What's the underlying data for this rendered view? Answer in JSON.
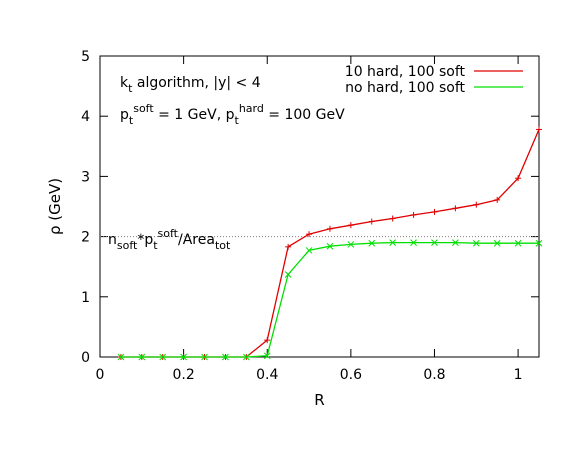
{
  "chart_data": {
    "type": "line",
    "title": "",
    "xlabel": "R",
    "ylabel": "ρ (GeV)",
    "xlim": [
      0,
      1.05
    ],
    "ylim": [
      0,
      5
    ],
    "x_ticks": [
      "0",
      "0.2",
      "0.4",
      "0.6",
      "0.8",
      "1"
    ],
    "y_ticks": [
      "0",
      "1",
      "2",
      "3",
      "4",
      "5"
    ],
    "grid": false,
    "legend_position": "top-right",
    "annotation": {
      "line1_k": "k",
      "line1_k_sub": "t",
      "line1_rest": " algorithm, |y| < 4",
      "line2_p1": "p",
      "line2_p1_sub": "t",
      "line2_p1_sup": "soft",
      "line2_mid": " = 1 GeV, p",
      "line2_p2_sub": "t",
      "line2_p2_sup": "hard",
      "line2_end": " = 100 GeV"
    },
    "reference_line": {
      "y": 2.0,
      "label_n": "n",
      "label_n_sub": "soft",
      "label_star": "*p",
      "label_p_sub": "t",
      "label_p_sup": "soft",
      "label_area": "/Area",
      "label_area_sub": "tot",
      "color": "#808080"
    },
    "x": [
      0.05,
      0.1,
      0.15,
      0.2,
      0.25,
      0.3,
      0.35,
      0.4,
      0.45,
      0.5,
      0.55,
      0.6,
      0.65,
      0.7,
      0.75,
      0.8,
      0.85,
      0.9,
      0.95,
      1.0,
      1.05
    ],
    "series": [
      {
        "name": "10 hard, 100 soft",
        "color": "#e00000",
        "marker": "plus",
        "values": [
          0,
          0,
          0,
          0,
          0,
          0,
          0,
          0.28,
          1.83,
          2.04,
          2.13,
          2.19,
          2.25,
          2.3,
          2.36,
          2.41,
          2.47,
          2.53,
          2.61,
          2.97,
          3.78
        ]
      },
      {
        "name": "no hard, 100 soft",
        "color": "#00e000",
        "marker": "cross",
        "values": [
          0,
          0,
          0,
          0,
          0,
          0,
          0,
          0.02,
          1.37,
          1.77,
          1.84,
          1.87,
          1.89,
          1.9,
          1.9,
          1.9,
          1.9,
          1.89,
          1.89,
          1.89,
          1.89
        ]
      }
    ]
  }
}
